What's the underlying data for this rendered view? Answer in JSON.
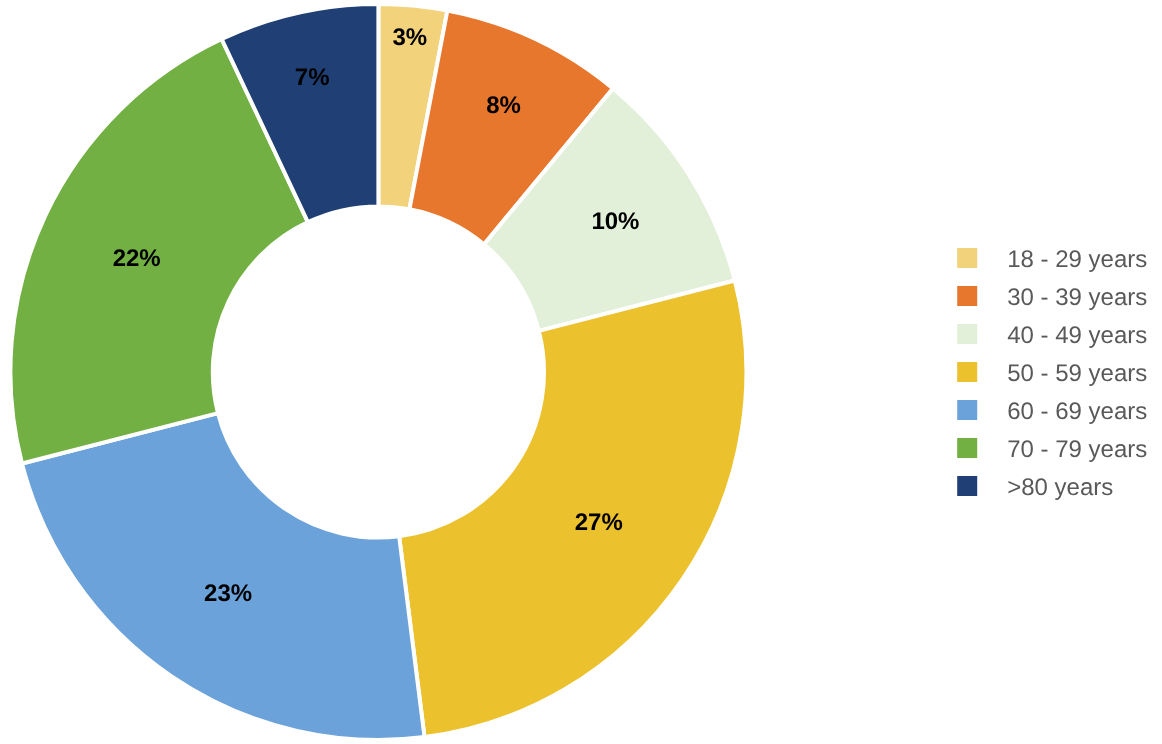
{
  "chart_data": {
    "type": "donut",
    "categories": [
      "18 - 29 years",
      "30 - 39 years",
      "40 - 49 years",
      "50 - 59 years",
      "60 - 69 years",
      "70 - 79 years",
      ">80 years"
    ],
    "values": [
      3,
      8,
      10,
      27,
      23,
      22,
      7
    ],
    "value_labels": [
      "3%",
      "8%",
      "10%",
      "27%",
      "23%",
      "22%",
      "7%"
    ],
    "colors": [
      "#f2d27a",
      "#e8772e",
      "#e2f0d9",
      "#ecc12e",
      "#6aa2d9",
      "#72b043",
      "#203f75"
    ],
    "legend": "right"
  }
}
